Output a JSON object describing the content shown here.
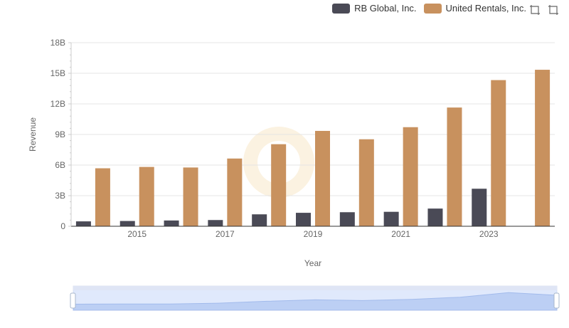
{
  "chart_data": {
    "type": "bar",
    "xlabel": "Year",
    "ylabel": "Revenue",
    "years": [
      2014,
      2015,
      2016,
      2017,
      2018,
      2019,
      2020,
      2021,
      2022,
      2023,
      2024
    ],
    "x_tick_labels": [
      "2015",
      "2017",
      "2019",
      "2021",
      "2023"
    ],
    "y_tick_labels": [
      "0",
      "3B",
      "6B",
      "9B",
      "12B",
      "15B",
      "18B"
    ],
    "ylim": [
      0,
      18000000000
    ],
    "grid": true,
    "legend_position": "top-right",
    "series": [
      {
        "name": "RB Global, Inc.",
        "color": "#4a4a56",
        "values": [
          480000000,
          516000000,
          566000000,
          610000000,
          1170000000,
          1319000000,
          1377000000,
          1417000000,
          1734000000,
          3680000000,
          null
        ]
      },
      {
        "name": "United Rentals, Inc.",
        "color": "#c8915e",
        "values": [
          5685000000,
          5817000000,
          5762000000,
          6641000000,
          8047000000,
          9351000000,
          8530000000,
          9716000000,
          11642000000,
          14332000000,
          15345000000
        ]
      }
    ]
  },
  "toolbox": {
    "zoom_icon": "data-zoom-icon",
    "restore_icon": "restore-icon"
  }
}
